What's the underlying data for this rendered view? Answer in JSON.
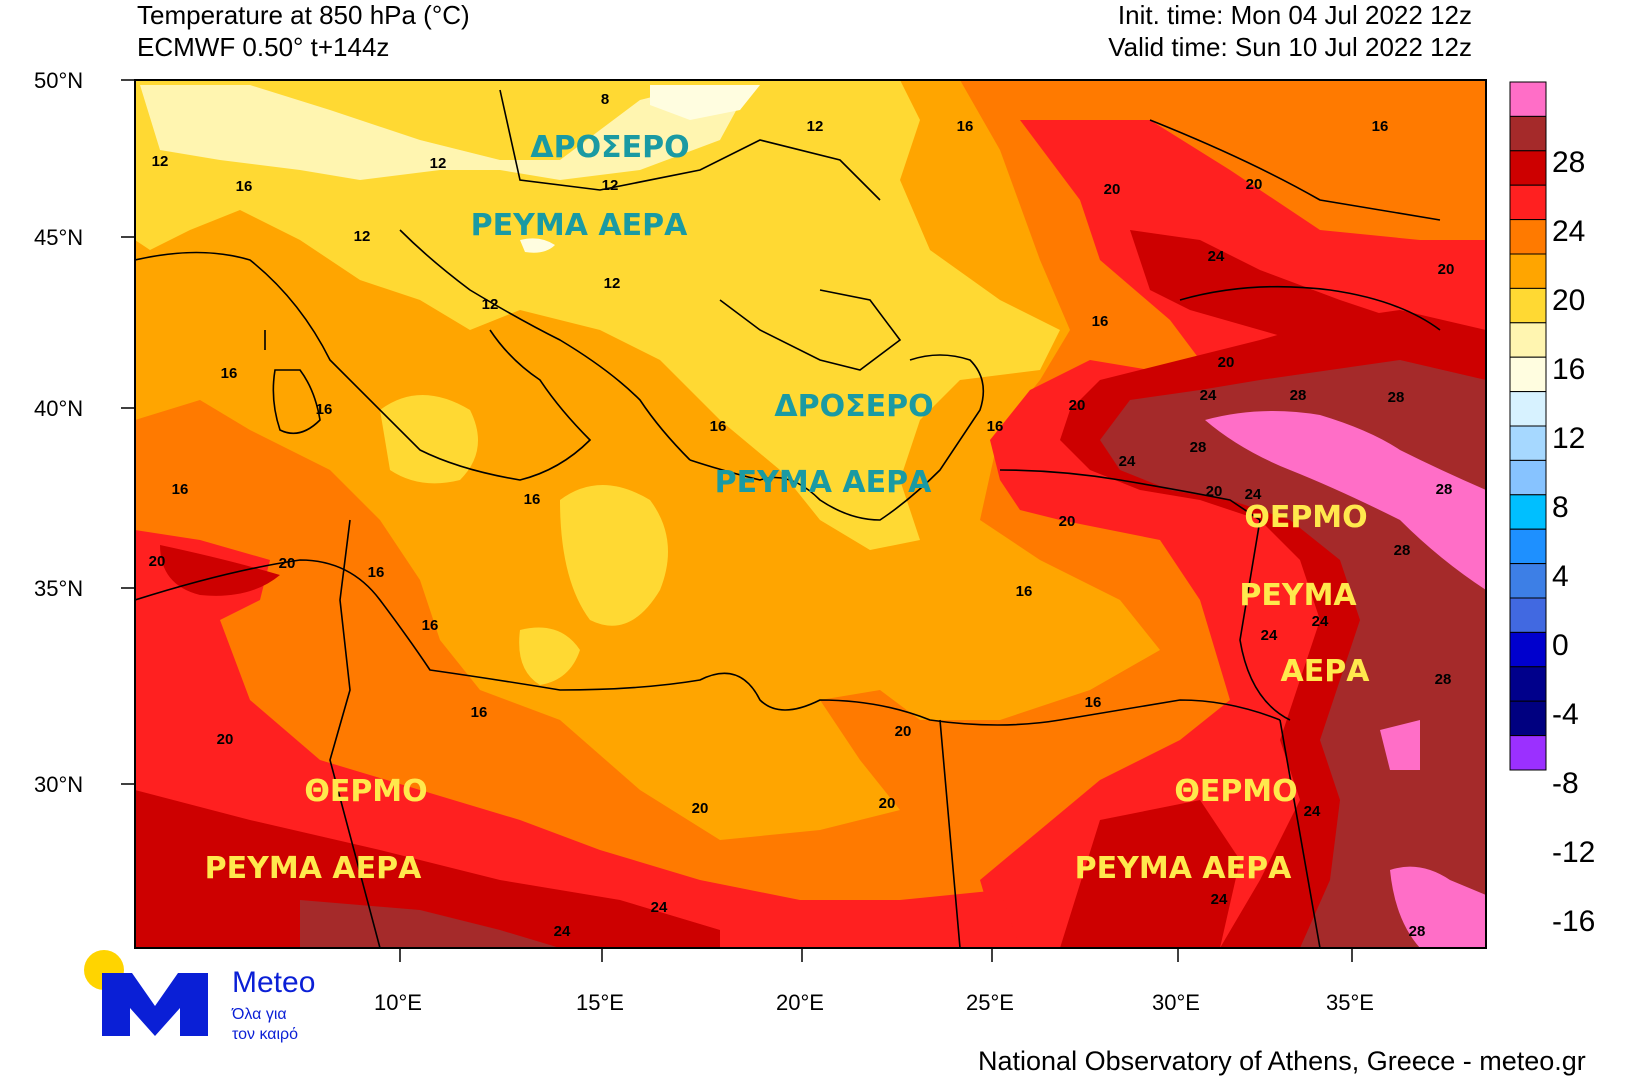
{
  "header": {
    "title_line1": "Temperature at 850 hPa (°C)",
    "title_line2": "ECMWF 0.50° t+144z",
    "init_time": "Init. time: Mon 04 Jul 2022 12z",
    "valid_time": "Valid time: Sun 10 Jul 2022 12z"
  },
  "axes": {
    "lat_labels": [
      "50°N",
      "45°N",
      "40°N",
      "35°N",
      "30°N"
    ],
    "lon_labels": [
      "10°E",
      "15°E",
      "20°E",
      "25°E",
      "30°E",
      "35°E"
    ]
  },
  "colorbar": {
    "labels": [
      "28",
      "24",
      "20",
      "16",
      "12",
      "8",
      "4",
      "0",
      "-4",
      "-8",
      "-12",
      "-16"
    ],
    "colors": [
      "#ff6ec7",
      "#a52a2a",
      "#cd0000",
      "#ff2020",
      "#ff7a00",
      "#ffa500",
      "#ffd933",
      "#fff5b0",
      "#fffde0",
      "#d7f2ff",
      "#a6d8ff",
      "#87c3ff",
      "#00bfff",
      "#1e90ff",
      "#3d7fe6",
      "#4169e1",
      "#0000cd",
      "#00008b",
      "#000080",
      "#9b30ff"
    ]
  },
  "annotations": {
    "cool_north_1": "ΔΡΟΣΕΡΟ",
    "cool_north_2": "ΡΕΥΜΑ ΑΕΡΑ",
    "cool_greece_1": "ΔΡΟΣΕΡΟ",
    "cool_greece_2": "ΡΕΥΜΑ ΑΕΡΑ",
    "hot_east_1": "ΘΕΡΜΟ",
    "hot_east_2": "ΡΕΥΜΑ",
    "hot_east_3": "ΑΕΡΑ",
    "hot_sw_1": "ΘΕΡΜΟ",
    "hot_sw_2": "ΡΕΥΜΑ ΑΕΡΑ",
    "hot_se_1": "ΘΕΡΜΟ",
    "hot_se_2": "ΡΕΥΜΑ ΑΕΡΑ"
  },
  "contour_labels": [
    "8",
    "12",
    "12",
    "12",
    "12",
    "12",
    "12",
    "12",
    "16",
    "16",
    "16",
    "16",
    "16",
    "16",
    "16",
    "16",
    "16",
    "16",
    "16",
    "16",
    "16",
    "16",
    "16",
    "20",
    "20",
    "20",
    "20",
    "20",
    "20",
    "20",
    "20",
    "20",
    "20",
    "20",
    "20",
    "20",
    "24",
    "24",
    "24",
    "24",
    "24",
    "24",
    "24",
    "24",
    "24",
    "24",
    "28",
    "28",
    "28",
    "28",
    "28",
    "28",
    "28"
  ],
  "logo": {
    "name": "Meteo",
    "tagline_1": "Όλα για",
    "tagline_2": "τον καιρό"
  },
  "footer": "National Observatory of Athens, Greece - meteo.gr"
}
